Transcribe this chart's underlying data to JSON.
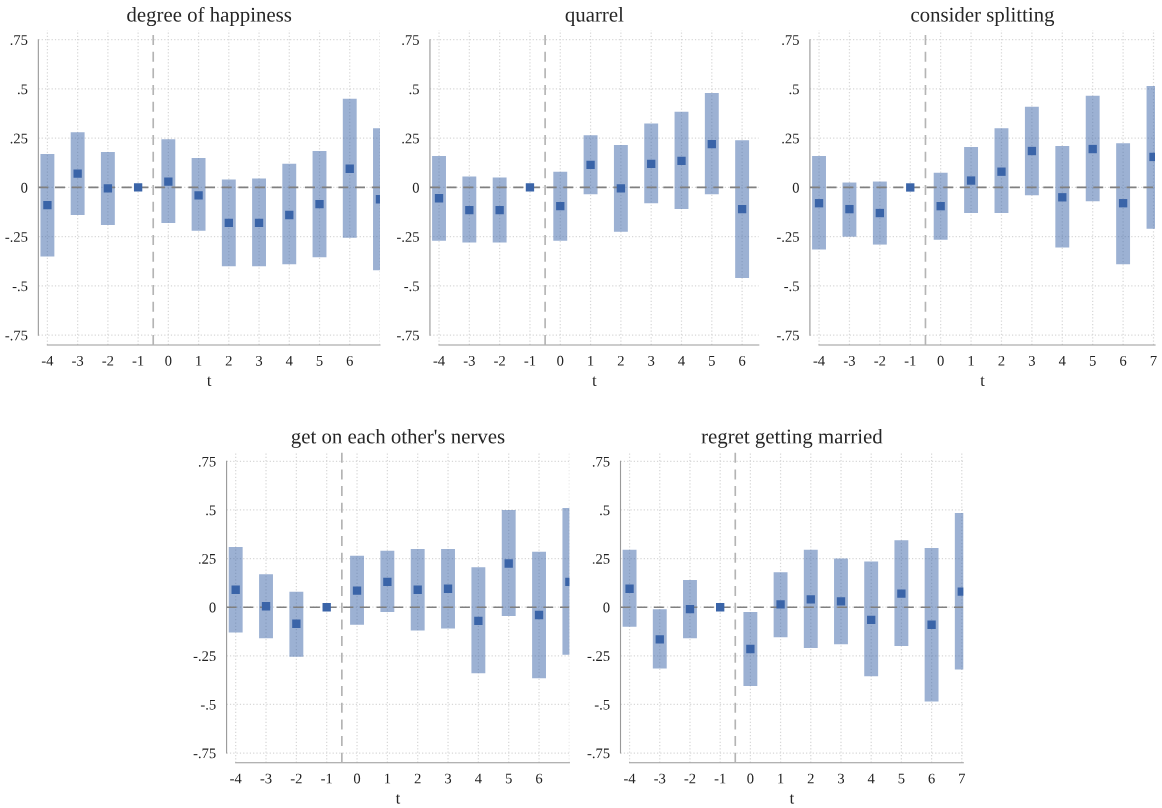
{
  "chart_data": [
    {
      "type": "scatter",
      "title": "degree of happiness",
      "xlabel": "t",
      "marker": "square",
      "grid": true,
      "x": [
        -4,
        -3,
        -2,
        -1,
        0,
        1,
        2,
        3,
        4,
        5,
        6,
        7
      ],
      "series": [
        {
          "color": "#3a64a8",
          "values": [
            -0.09,
            0.07,
            -0.005,
            0,
            0.03,
            -0.04,
            -0.18,
            -0.18,
            -0.14,
            -0.085,
            0.095,
            -0.06
          ],
          "errors": [
            [
              -0.35,
              0.17
            ],
            [
              -0.14,
              0.28
            ],
            [
              -0.19,
              0.18
            ],
            null,
            [
              -0.18,
              0.245
            ],
            [
              -0.22,
              0.15
            ],
            [
              -0.4,
              0.04
            ],
            [
              -0.4,
              0.045
            ],
            [
              -0.39,
              0.12
            ],
            [
              -0.355,
              0.185
            ],
            [
              -0.255,
              0.45
            ],
            [
              -0.42,
              0.3
            ]
          ]
        }
      ],
      "xlim": [
        -4.3,
        7
      ],
      "ylim": [
        -0.8,
        0.8
      ],
      "xticks": [
        -4,
        -3,
        -2,
        -1,
        0,
        1,
        2,
        3,
        4,
        5,
        6,
        {
          "value": 7,
          "label": null
        }
      ],
      "yticks": [
        {
          "value": -0.75,
          "label": "-.75"
        },
        {
          "value": -0.5,
          "label": "-.5"
        },
        {
          "value": -0.25,
          "label": "-.25"
        },
        0,
        {
          "value": 0.25,
          "label": ".25"
        },
        {
          "value": 0.5,
          "label": ".5"
        },
        {
          "value": 0.75,
          "label": ".75"
        }
      ],
      "ref_lines": [
        {
          "axis": "y",
          "value": 0,
          "color": "#808080",
          "line_style": "dashed"
        },
        {
          "axis": "x",
          "value": -0.5,
          "color": "#b4b4b4",
          "line_style": "dashed"
        }
      ]
    },
    {
      "type": "scatter",
      "title": "quarrel",
      "xlabel": "t",
      "marker": "square",
      "grid": true,
      "x": [
        -4,
        -3,
        -2,
        -1,
        0,
        1,
        2,
        3,
        4,
        5,
        6
      ],
      "series": [
        {
          "color": "#3a64a8",
          "values": [
            -0.055,
            -0.115,
            -0.115,
            0,
            -0.095,
            0.115,
            -0.005,
            0.12,
            0.135,
            0.22,
            -0.11
          ],
          "errors": [
            [
              -0.27,
              0.16
            ],
            [
              -0.28,
              0.055
            ],
            [
              -0.28,
              0.05
            ],
            null,
            [
              -0.27,
              0.08
            ],
            [
              -0.035,
              0.265
            ],
            [
              -0.225,
              0.215
            ],
            [
              -0.08,
              0.325
            ],
            [
              -0.11,
              0.385
            ],
            [
              -0.035,
              0.48
            ],
            [
              -0.46,
              0.24
            ]
          ]
        }
      ],
      "xlim": [
        -4.3,
        6.55
      ],
      "ylim": [
        -0.8,
        0.8
      ],
      "xticks": [
        -4,
        -3,
        -2,
        -1,
        0,
        1,
        2,
        3,
        4,
        5,
        6
      ],
      "yticks": [
        {
          "value": -0.75,
          "label": "-.75"
        },
        {
          "value": -0.5,
          "label": "-.5"
        },
        {
          "value": -0.25,
          "label": "-.25"
        },
        0,
        {
          "value": 0.25,
          "label": ".25"
        },
        {
          "value": 0.5,
          "label": ".5"
        },
        {
          "value": 0.75,
          "label": ".75"
        }
      ],
      "ref_lines": [
        {
          "axis": "y",
          "value": 0,
          "color": "#808080",
          "line_style": "dashed"
        },
        {
          "axis": "x",
          "value": -0.5,
          "color": "#b4b4b4",
          "line_style": "dashed"
        }
      ]
    },
    {
      "type": "scatter",
      "title": "consider splitting",
      "xlabel": "t",
      "marker": "square",
      "grid": true,
      "x": [
        -4,
        -3,
        -2,
        -1,
        0,
        1,
        2,
        3,
        4,
        5,
        6,
        7
      ],
      "series": [
        {
          "color": "#3a64a8",
          "values": [
            -0.08,
            -0.11,
            -0.13,
            0,
            -0.095,
            0.035,
            0.08,
            0.185,
            -0.05,
            0.195,
            -0.08,
            0.155
          ],
          "errors": [
            [
              -0.315,
              0.16
            ],
            [
              -0.25,
              0.025
            ],
            [
              -0.29,
              0.03
            ],
            null,
            [
              -0.265,
              0.075
            ],
            [
              -0.13,
              0.205
            ],
            [
              -0.13,
              0.3
            ],
            [
              -0.04,
              0.41
            ],
            [
              -0.305,
              0.21
            ],
            [
              -0.07,
              0.465
            ],
            [
              -0.39,
              0.225
            ],
            [
              -0.21,
              0.515
            ]
          ]
        }
      ],
      "xlim": [
        -4.3,
        7.05
      ],
      "ylim": [
        -0.8,
        0.8
      ],
      "xticks": [
        -4,
        -3,
        -2,
        -1,
        0,
        1,
        2,
        3,
        4,
        5,
        6,
        7
      ],
      "yticks": [
        {
          "value": -0.75,
          "label": "-.75"
        },
        {
          "value": -0.5,
          "label": "-.5"
        },
        {
          "value": -0.25,
          "label": "-.25"
        },
        0,
        {
          "value": 0.25,
          "label": ".25"
        },
        {
          "value": 0.5,
          "label": ".5"
        },
        {
          "value": 0.75,
          "label": ".75"
        }
      ],
      "ref_lines": [
        {
          "axis": "y",
          "value": 0,
          "color": "#808080",
          "line_style": "dashed"
        },
        {
          "axis": "x",
          "value": -0.5,
          "color": "#b4b4b4",
          "line_style": "dashed"
        }
      ]
    },
    {
      "type": "scatter",
      "title": "get on each other's nerves",
      "xlabel": "t",
      "marker": "square",
      "grid": true,
      "x": [
        -4,
        -3,
        -2,
        -1,
        0,
        1,
        2,
        3,
        4,
        5,
        6,
        7
      ],
      "series": [
        {
          "color": "#3a64a8",
          "values": [
            0.09,
            0.005,
            -0.085,
            0,
            0.085,
            0.13,
            0.09,
            0.095,
            -0.07,
            0.225,
            -0.04,
            0.13
          ],
          "errors": [
            [
              -0.13,
              0.31
            ],
            [
              -0.16,
              0.17
            ],
            [
              -0.255,
              0.08
            ],
            null,
            [
              -0.09,
              0.265
            ],
            [
              -0.025,
              0.29
            ],
            [
              -0.12,
              0.3
            ],
            [
              -0.11,
              0.3
            ],
            [
              -0.34,
              0.205
            ],
            [
              -0.045,
              0.5
            ],
            [
              -0.365,
              0.285
            ],
            [
              -0.245,
              0.51
            ]
          ]
        }
      ],
      "xlim": [
        -4.3,
        7
      ],
      "ylim": [
        -0.8,
        0.8
      ],
      "xticks": [
        -4,
        -3,
        -2,
        -1,
        0,
        1,
        2,
        3,
        4,
        5,
        6,
        {
          "value": 7,
          "label": null
        }
      ],
      "yticks": [
        {
          "value": -0.75,
          "label": "-.75"
        },
        {
          "value": -0.5,
          "label": "-.5"
        },
        {
          "value": -0.25,
          "label": "-.25"
        },
        0,
        {
          "value": 0.25,
          "label": ".25"
        },
        {
          "value": 0.5,
          "label": ".5"
        },
        {
          "value": 0.75,
          "label": ".75"
        }
      ],
      "ref_lines": [
        {
          "axis": "y",
          "value": 0,
          "color": "#808080",
          "line_style": "dashed"
        },
        {
          "axis": "x",
          "value": -0.5,
          "color": "#b4b4b4",
          "line_style": "dashed"
        }
      ]
    },
    {
      "type": "scatter",
      "title": "regret getting married",
      "xlabel": "t",
      "marker": "square",
      "grid": true,
      "x": [
        -4,
        -3,
        -2,
        -1,
        0,
        1,
        2,
        3,
        4,
        5,
        6,
        7
      ],
      "series": [
        {
          "color": "#3a64a8",
          "values": [
            0.095,
            -0.165,
            -0.01,
            0,
            -0.215,
            0.015,
            0.04,
            0.03,
            -0.065,
            0.07,
            -0.09,
            0.08
          ],
          "errors": [
            [
              -0.1,
              0.295
            ],
            [
              -0.315,
              -0.01
            ],
            [
              -0.16,
              0.14
            ],
            null,
            [
              -0.405,
              -0.025
            ],
            [
              -0.155,
              0.18
            ],
            [
              -0.21,
              0.295
            ],
            [
              -0.19,
              0.25
            ],
            [
              -0.355,
              0.235
            ],
            [
              -0.2,
              0.345
            ],
            [
              -0.485,
              0.305
            ],
            [
              -0.32,
              0.485
            ]
          ]
        }
      ],
      "xlim": [
        -4.3,
        7.05
      ],
      "ylim": [
        -0.8,
        0.8
      ],
      "xticks": [
        -4,
        -3,
        -2,
        -1,
        0,
        1,
        2,
        3,
        4,
        5,
        6,
        7
      ],
      "yticks": [
        {
          "value": -0.75,
          "label": "-.75"
        },
        {
          "value": -0.5,
          "label": "-.5"
        },
        {
          "value": -0.25,
          "label": "-.25"
        },
        0,
        {
          "value": 0.25,
          "label": ".25"
        },
        {
          "value": 0.5,
          "label": ".5"
        },
        {
          "value": 0.75,
          "label": ".75"
        }
      ],
      "ref_lines": [
        {
          "axis": "y",
          "value": 0,
          "color": "#808080",
          "line_style": "dashed"
        },
        {
          "axis": "x",
          "value": -0.5,
          "color": "#b4b4b4",
          "line_style": "dashed"
        }
      ]
    }
  ]
}
